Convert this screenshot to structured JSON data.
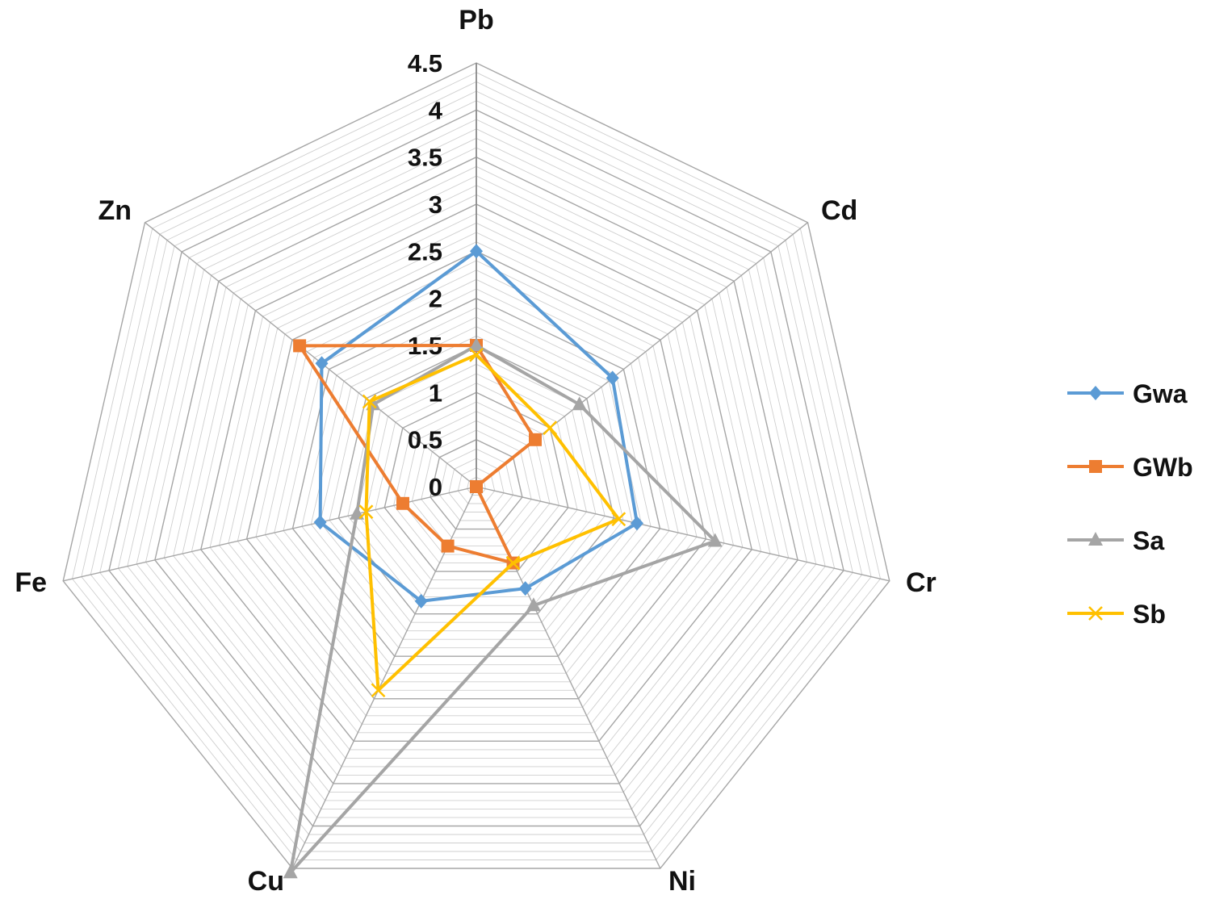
{
  "chart_data": {
    "type": "radar",
    "title": "",
    "categories": [
      "Pb",
      "Cd",
      "Cr",
      "Ni",
      "Cu",
      "Fe",
      "Zn"
    ],
    "rlim": [
      0,
      4.5
    ],
    "ticks": [
      "0",
      "0.5",
      "1",
      "1.5",
      "2",
      "2.5",
      "3",
      "3.5",
      "4",
      "4.5"
    ],
    "tick_values": [
      0,
      0.5,
      1,
      1.5,
      2,
      2.5,
      3,
      3.5,
      4,
      4.5
    ],
    "minor_grid_step": 0.1,
    "grid": true,
    "legend_position": "right",
    "series": [
      {
        "name": "Gwa",
        "color": "#5B9BD5",
        "marker": "diamond",
        "values": [
          2.5,
          1.85,
          1.75,
          1.2,
          1.35,
          1.7,
          2.1
        ]
      },
      {
        "name": "GWb",
        "color": "#ED7D31",
        "marker": "square",
        "values": [
          1.5,
          0.8,
          0.0,
          0.9,
          0.7,
          0.8,
          2.4
        ]
      },
      {
        "name": "Sa",
        "color": "#A5A5A5",
        "marker": "triangle",
        "values": [
          1.5,
          1.4,
          2.6,
          1.4,
          4.55,
          1.3,
          1.4
        ]
      },
      {
        "name": "Sb",
        "color": "#FFC000",
        "marker": "x",
        "values": [
          1.4,
          1.0,
          1.55,
          0.9,
          2.4,
          1.2,
          1.45
        ]
      }
    ]
  }
}
